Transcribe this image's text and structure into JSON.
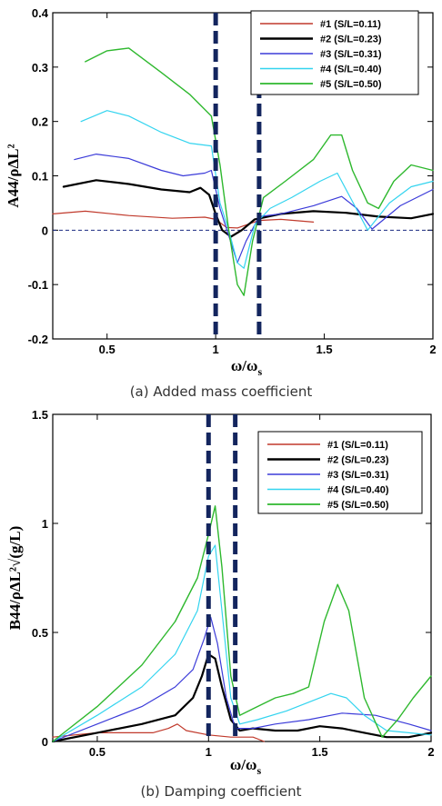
{
  "charts": [
    {
      "type": "line",
      "caption": "(a) Added mass coefficient",
      "xlabel": "ω/ω",
      "xlabel_sub": "s",
      "ylabel_text": "A44/ρΔL²",
      "xlim": [
        0.25,
        2.0
      ],
      "ylim": [
        -0.2,
        0.4
      ],
      "xticks": [
        0.5,
        1,
        1.5,
        2
      ],
      "xtick_labels": [
        "0.5",
        "1",
        "1.5",
        "2"
      ],
      "yticks": [
        -0.2,
        -0.1,
        0,
        0.1,
        0.2,
        0.3,
        0.4
      ],
      "ytick_labels": [
        "-0.2",
        "-0.1",
        "0",
        "0.1",
        "0.2",
        "0.3",
        "0.4"
      ],
      "vlines": [
        1.0,
        1.2
      ],
      "hline": 0,
      "legend": {
        "position": "top-right",
        "entries": [
          "#1 (S/L=0.11)",
          "#2 (S/L=0.23)",
          "#3 (S/L=0.31)",
          "#4 (S/L=0.40)",
          "#5 (S/L=0.50)"
        ]
      },
      "series": [
        {
          "name": "#1 (S/L=0.11)",
          "color": "#c0392b",
          "width": 1.2,
          "x": [
            0.25,
            0.4,
            0.6,
            0.8,
            0.95,
            1.0,
            1.05,
            1.1,
            1.2,
            1.3,
            1.45
          ],
          "y": [
            0.03,
            0.035,
            0.027,
            0.022,
            0.024,
            0.02,
            0.005,
            0.004,
            0.018,
            0.02,
            0.015
          ]
        },
        {
          "name": "#2 (S/L=0.23)",
          "color": "#000000",
          "width": 2.2,
          "x": [
            0.3,
            0.45,
            0.6,
            0.75,
            0.88,
            0.93,
            0.97,
            1.0,
            1.03,
            1.07,
            1.12,
            1.18,
            1.3,
            1.45,
            1.6,
            1.75,
            1.9,
            2.0
          ],
          "y": [
            0.08,
            0.092,
            0.085,
            0.075,
            0.07,
            0.078,
            0.065,
            0.03,
            0.0,
            -0.012,
            0.0,
            0.02,
            0.03,
            0.035,
            0.032,
            0.025,
            0.022,
            0.03
          ]
        },
        {
          "name": "#3 (S/L=0.31)",
          "color": "#3b3bd9",
          "width": 1.2,
          "x": [
            0.35,
            0.45,
            0.6,
            0.75,
            0.85,
            0.95,
            0.98,
            1.02,
            1.06,
            1.1,
            1.14,
            1.2,
            1.3,
            1.45,
            1.58,
            1.65,
            1.72,
            1.85,
            2.0
          ],
          "y": [
            0.13,
            0.14,
            0.132,
            0.11,
            0.1,
            0.105,
            0.11,
            0.04,
            -0.01,
            -0.06,
            -0.02,
            0.025,
            0.03,
            0.045,
            0.062,
            0.04,
            0.002,
            0.045,
            0.075
          ]
        },
        {
          "name": "#4 (S/L=0.40)",
          "color": "#33d4ef",
          "width": 1.2,
          "x": [
            0.38,
            0.5,
            0.6,
            0.75,
            0.88,
            0.98,
            1.02,
            1.06,
            1.1,
            1.13,
            1.18,
            1.25,
            1.35,
            1.48,
            1.56,
            1.62,
            1.7,
            1.8,
            1.9,
            2.0
          ],
          "y": [
            0.2,
            0.22,
            0.21,
            0.18,
            0.16,
            0.155,
            0.05,
            0.0,
            -0.06,
            -0.07,
            0.01,
            0.04,
            0.06,
            0.09,
            0.105,
            0.06,
            0.0,
            0.05,
            0.08,
            0.09
          ]
        },
        {
          "name": "#5 (S/L=0.50)",
          "color": "#2eb82e",
          "width": 1.4,
          "x": [
            0.4,
            0.5,
            0.6,
            0.75,
            0.88,
            0.98,
            1.02,
            1.06,
            1.1,
            1.13,
            1.17,
            1.22,
            1.32,
            1.45,
            1.53,
            1.58,
            1.63,
            1.7,
            1.75,
            1.82,
            1.9,
            2.0
          ],
          "y": [
            0.31,
            0.33,
            0.335,
            0.29,
            0.25,
            0.21,
            0.12,
            0.0,
            -0.1,
            -0.12,
            -0.02,
            0.06,
            0.09,
            0.13,
            0.175,
            0.175,
            0.11,
            0.05,
            0.04,
            0.09,
            0.12,
            0.11
          ]
        }
      ]
    },
    {
      "type": "line",
      "caption": "(b) Damping coefficient",
      "xlabel": "ω/ω",
      "xlabel_sub": "s",
      "ylabel_text": "B44/ρΔL²√(g/L)",
      "xlim": [
        0.3,
        2.0
      ],
      "ylim": [
        0,
        1.5
      ],
      "xticks": [
        0.5,
        1,
        1.5,
        2
      ],
      "xtick_labels": [
        "0.5",
        "1",
        "1.5",
        "2"
      ],
      "yticks": [
        0,
        0.5,
        1,
        1.5
      ],
      "ytick_labels": [
        "0",
        "0.5",
        "1",
        "1.5"
      ],
      "vlines": [
        1.0,
        1.12
      ],
      "legend": {
        "position": "top-right",
        "entries": [
          "#1 (S/L=0.11)",
          "#2 (S/L=0.23)",
          "#3 (S/L=0.31)",
          "#4 (S/L=0.40)",
          "#5 (S/L=0.50)"
        ]
      },
      "series": [
        {
          "name": "#1 (S/L=0.11)",
          "color": "#c0392b",
          "width": 1.2,
          "x": [
            0.3,
            0.5,
            0.75,
            0.82,
            0.86,
            0.9,
            1.0,
            1.1,
            1.2,
            1.25
          ],
          "y": [
            0.02,
            0.04,
            0.04,
            0.06,
            0.08,
            0.05,
            0.03,
            0.02,
            0.02,
            0.0
          ]
        },
        {
          "name": "#2 (S/L=0.23)",
          "color": "#000000",
          "width": 2.2,
          "x": [
            0.3,
            0.5,
            0.7,
            0.85,
            0.93,
            0.97,
            1.0,
            1.03,
            1.06,
            1.1,
            1.14,
            1.2,
            1.3,
            1.4,
            1.5,
            1.6,
            1.7,
            1.8,
            1.9,
            2.0
          ],
          "y": [
            0.0,
            0.04,
            0.08,
            0.12,
            0.2,
            0.3,
            0.4,
            0.38,
            0.25,
            0.1,
            0.05,
            0.06,
            0.05,
            0.05,
            0.07,
            0.06,
            0.04,
            0.02,
            0.02,
            0.04
          ]
        },
        {
          "name": "#3 (S/L=0.31)",
          "color": "#3b3bd9",
          "width": 1.2,
          "x": [
            0.3,
            0.5,
            0.7,
            0.85,
            0.93,
            0.98,
            1.01,
            1.04,
            1.08,
            1.12,
            1.2,
            1.3,
            1.45,
            1.6,
            1.75,
            1.9,
            2.0
          ],
          "y": [
            0.0,
            0.08,
            0.16,
            0.25,
            0.33,
            0.47,
            0.57,
            0.45,
            0.2,
            0.06,
            0.06,
            0.08,
            0.1,
            0.13,
            0.12,
            0.08,
            0.05
          ]
        },
        {
          "name": "#4 (S/L=0.40)",
          "color": "#33d4ef",
          "width": 1.2,
          "x": [
            0.3,
            0.5,
            0.7,
            0.85,
            0.95,
            1.0,
            1.03,
            1.06,
            1.1,
            1.14,
            1.22,
            1.35,
            1.45,
            1.55,
            1.62,
            1.7,
            1.8,
            1.9,
            2.0
          ],
          "y": [
            0.0,
            0.12,
            0.25,
            0.4,
            0.6,
            0.85,
            0.9,
            0.6,
            0.2,
            0.08,
            0.1,
            0.14,
            0.18,
            0.22,
            0.2,
            0.12,
            0.05,
            0.04,
            0.03
          ]
        },
        {
          "name": "#5 (S/L=0.50)",
          "color": "#2eb82e",
          "width": 1.4,
          "x": [
            0.3,
            0.5,
            0.7,
            0.85,
            0.95,
            1.0,
            1.03,
            1.06,
            1.1,
            1.14,
            1.2,
            1.3,
            1.38,
            1.45,
            1.52,
            1.58,
            1.63,
            1.7,
            1.78,
            1.85,
            1.92,
            2.0
          ],
          "y": [
            0.0,
            0.16,
            0.35,
            0.55,
            0.75,
            0.95,
            1.08,
            0.8,
            0.3,
            0.12,
            0.15,
            0.2,
            0.22,
            0.25,
            0.55,
            0.72,
            0.6,
            0.2,
            0.02,
            0.1,
            0.2,
            0.3
          ]
        }
      ]
    }
  ]
}
